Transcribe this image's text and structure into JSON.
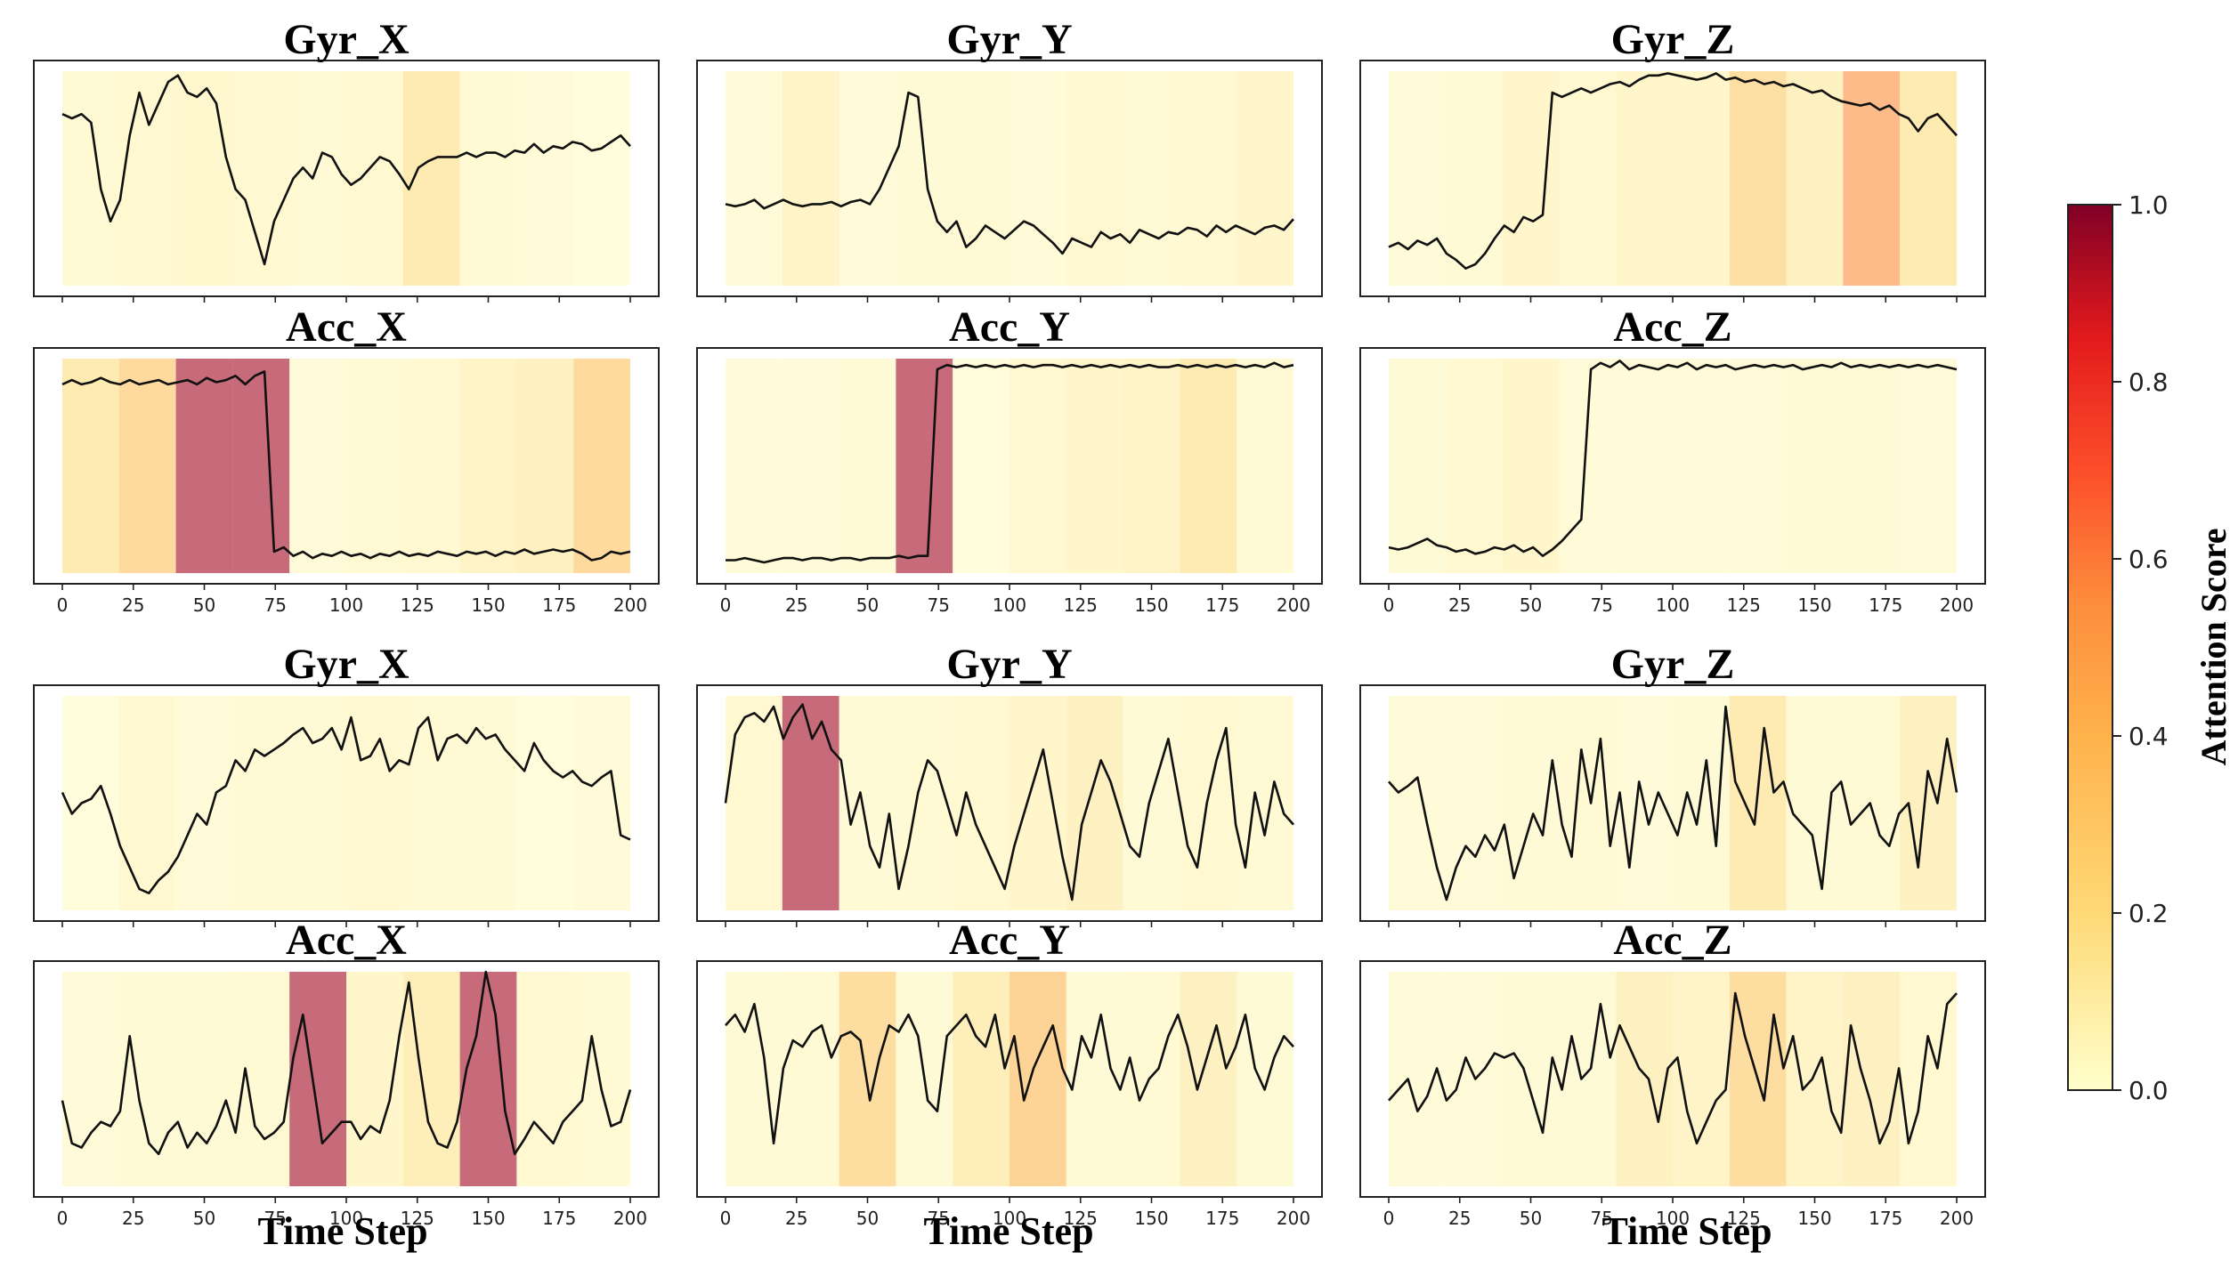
{
  "chart_data": {
    "type": "line",
    "panels": [
      {
        "title": "Gyr_X",
        "attention": [
          0.05,
          0.06,
          0.07,
          0.06,
          0.05,
          0.06,
          0.18,
          0.05,
          0.03,
          0.02
        ],
        "values": [
          0.8,
          0.78,
          0.8,
          0.76,
          0.45,
          0.3,
          0.4,
          0.7,
          0.9,
          0.75,
          0.85,
          0.95,
          0.98,
          0.9,
          0.88,
          0.92,
          0.85,
          0.6,
          0.45,
          0.4,
          0.25,
          0.1,
          0.3,
          0.4,
          0.5,
          0.55,
          0.5,
          0.62,
          0.6,
          0.52,
          0.47,
          0.5,
          0.55,
          0.6,
          0.58,
          0.52,
          0.45,
          0.55,
          0.58,
          0.6,
          0.6,
          0.6,
          0.62,
          0.6,
          0.62,
          0.62,
          0.6,
          0.63,
          0.62,
          0.66,
          0.62,
          0.65,
          0.64,
          0.67,
          0.66,
          0.63,
          0.64,
          0.67,
          0.7,
          0.65
        ]
      },
      {
        "title": "Gyr_Y",
        "attention": [
          0.03,
          0.1,
          0.03,
          0.04,
          0.05,
          0.03,
          0.06,
          0.05,
          0.06,
          0.08
        ],
        "values": [
          0.38,
          0.37,
          0.38,
          0.4,
          0.36,
          0.38,
          0.4,
          0.38,
          0.37,
          0.38,
          0.38,
          0.39,
          0.37,
          0.39,
          0.4,
          0.38,
          0.45,
          0.55,
          0.65,
          0.9,
          0.88,
          0.45,
          0.3,
          0.25,
          0.3,
          0.18,
          0.22,
          0.28,
          0.25,
          0.22,
          0.26,
          0.3,
          0.28,
          0.24,
          0.2,
          0.15,
          0.22,
          0.2,
          0.18,
          0.25,
          0.22,
          0.24,
          0.2,
          0.26,
          0.24,
          0.22,
          0.25,
          0.24,
          0.27,
          0.26,
          0.23,
          0.28,
          0.25,
          0.28,
          0.26,
          0.24,
          0.27,
          0.28,
          0.26,
          0.31
        ]
      },
      {
        "title": "Gyr_Z",
        "attention": [
          0.03,
          0.04,
          0.08,
          0.06,
          0.08,
          0.08,
          0.28,
          0.12,
          0.55,
          0.18
        ],
        "values": [
          0.18,
          0.2,
          0.17,
          0.21,
          0.19,
          0.22,
          0.15,
          0.12,
          0.08,
          0.1,
          0.15,
          0.22,
          0.28,
          0.25,
          0.32,
          0.3,
          0.33,
          0.9,
          0.88,
          0.9,
          0.92,
          0.9,
          0.92,
          0.94,
          0.95,
          0.93,
          0.96,
          0.98,
          0.98,
          0.99,
          0.98,
          0.97,
          0.96,
          0.97,
          0.99,
          0.96,
          0.97,
          0.95,
          0.96,
          0.94,
          0.95,
          0.93,
          0.94,
          0.92,
          0.9,
          0.91,
          0.88,
          0.86,
          0.85,
          0.84,
          0.85,
          0.82,
          0.84,
          0.8,
          0.78,
          0.72,
          0.78,
          0.8,
          0.75,
          0.7
        ]
      },
      {
        "title": "Acc_X",
        "attention": [
          0.18,
          0.32,
          0.95,
          0.95,
          0.03,
          0.05,
          0.06,
          0.1,
          0.12,
          0.32
        ],
        "values": [
          0.88,
          0.9,
          0.88,
          0.89,
          0.91,
          0.89,
          0.88,
          0.9,
          0.88,
          0.89,
          0.9,
          0.88,
          0.89,
          0.9,
          0.88,
          0.91,
          0.89,
          0.9,
          0.92,
          0.88,
          0.92,
          0.94,
          0.1,
          0.12,
          0.08,
          0.1,
          0.07,
          0.09,
          0.08,
          0.1,
          0.08,
          0.09,
          0.07,
          0.09,
          0.08,
          0.1,
          0.08,
          0.09,
          0.08,
          0.1,
          0.09,
          0.08,
          0.1,
          0.09,
          0.1,
          0.08,
          0.1,
          0.09,
          0.11,
          0.09,
          0.1,
          0.11,
          0.1,
          0.11,
          0.09,
          0.06,
          0.07,
          0.1,
          0.09,
          0.1
        ]
      },
      {
        "title": "Acc_Y",
        "attention": [
          0.03,
          0.03,
          0.04,
          0.95,
          0.02,
          0.06,
          0.08,
          0.1,
          0.18,
          0.05
        ],
        "values": [
          0.06,
          0.06,
          0.07,
          0.06,
          0.05,
          0.06,
          0.07,
          0.07,
          0.06,
          0.07,
          0.07,
          0.06,
          0.07,
          0.07,
          0.06,
          0.07,
          0.07,
          0.07,
          0.08,
          0.07,
          0.08,
          0.08,
          0.95,
          0.97,
          0.96,
          0.97,
          0.96,
          0.97,
          0.96,
          0.97,
          0.96,
          0.97,
          0.96,
          0.97,
          0.97,
          0.96,
          0.97,
          0.96,
          0.97,
          0.96,
          0.97,
          0.96,
          0.97,
          0.96,
          0.97,
          0.96,
          0.96,
          0.97,
          0.96,
          0.97,
          0.96,
          0.97,
          0.96,
          0.97,
          0.96,
          0.97,
          0.96,
          0.98,
          0.96,
          0.97
        ]
      },
      {
        "title": "Acc_Z",
        "attention": [
          0.04,
          0.06,
          0.08,
          0.03,
          0.03,
          0.03,
          0.03,
          0.04,
          0.04,
          0.03
        ],
        "values": [
          0.12,
          0.11,
          0.12,
          0.14,
          0.16,
          0.13,
          0.12,
          0.1,
          0.11,
          0.09,
          0.1,
          0.12,
          0.11,
          0.13,
          0.1,
          0.12,
          0.08,
          0.11,
          0.15,
          0.2,
          0.25,
          0.95,
          0.98,
          0.96,
          0.99,
          0.95,
          0.97,
          0.96,
          0.95,
          0.97,
          0.96,
          0.98,
          0.95,
          0.97,
          0.96,
          0.97,
          0.95,
          0.96,
          0.97,
          0.96,
          0.97,
          0.96,
          0.97,
          0.95,
          0.96,
          0.97,
          0.96,
          0.98,
          0.96,
          0.97,
          0.96,
          0.97,
          0.96,
          0.97,
          0.96,
          0.97,
          0.96,
          0.97,
          0.96,
          0.95
        ]
      },
      {
        "title": "Gyr_X",
        "attention": [
          0.02,
          0.06,
          0.03,
          0.05,
          0.04,
          0.06,
          0.05,
          0.04,
          0.02,
          0.03
        ],
        "values": [
          0.55,
          0.45,
          0.5,
          0.52,
          0.58,
          0.45,
          0.3,
          0.2,
          0.1,
          0.08,
          0.14,
          0.18,
          0.25,
          0.35,
          0.45,
          0.4,
          0.55,
          0.58,
          0.7,
          0.65,
          0.75,
          0.72,
          0.75,
          0.78,
          0.82,
          0.85,
          0.78,
          0.8,
          0.85,
          0.75,
          0.9,
          0.7,
          0.72,
          0.8,
          0.65,
          0.7,
          0.68,
          0.85,
          0.9,
          0.7,
          0.8,
          0.82,
          0.78,
          0.85,
          0.8,
          0.82,
          0.75,
          0.7,
          0.65,
          0.78,
          0.7,
          0.65,
          0.62,
          0.65,
          0.6,
          0.58,
          0.62,
          0.65,
          0.35,
          0.33
        ]
      },
      {
        "title": "Gyr_Y",
        "attention": [
          0.06,
          0.95,
          0.04,
          0.05,
          0.06,
          0.08,
          0.12,
          0.04,
          0.06,
          0.05
        ],
        "values": [
          0.5,
          0.82,
          0.9,
          0.92,
          0.88,
          0.95,
          0.8,
          0.9,
          0.96,
          0.8,
          0.88,
          0.75,
          0.7,
          0.4,
          0.55,
          0.3,
          0.2,
          0.45,
          0.1,
          0.3,
          0.55,
          0.7,
          0.65,
          0.5,
          0.35,
          0.55,
          0.4,
          0.3,
          0.2,
          0.1,
          0.3,
          0.45,
          0.6,
          0.75,
          0.5,
          0.25,
          0.05,
          0.4,
          0.55,
          0.7,
          0.6,
          0.45,
          0.3,
          0.25,
          0.5,
          0.65,
          0.8,
          0.55,
          0.3,
          0.2,
          0.5,
          0.7,
          0.85,
          0.4,
          0.2,
          0.55,
          0.35,
          0.6,
          0.45,
          0.4
        ]
      },
      {
        "title": "Gyr_Z",
        "attention": [
          0.03,
          0.03,
          0.04,
          0.05,
          0.03,
          0.04,
          0.18,
          0.04,
          0.05,
          0.12
        ],
        "values": [
          0.6,
          0.55,
          0.58,
          0.62,
          0.4,
          0.2,
          0.05,
          0.2,
          0.3,
          0.25,
          0.35,
          0.28,
          0.4,
          0.15,
          0.3,
          0.45,
          0.35,
          0.7,
          0.4,
          0.25,
          0.75,
          0.5,
          0.8,
          0.3,
          0.55,
          0.2,
          0.6,
          0.4,
          0.55,
          0.45,
          0.35,
          0.55,
          0.4,
          0.7,
          0.3,
          0.95,
          0.6,
          0.5,
          0.4,
          0.85,
          0.55,
          0.6,
          0.45,
          0.4,
          0.35,
          0.1,
          0.55,
          0.6,
          0.4,
          0.45,
          0.5,
          0.35,
          0.3,
          0.45,
          0.5,
          0.2,
          0.65,
          0.5,
          0.8,
          0.55
        ]
      },
      {
        "title": "Acc_X",
        "attention": [
          0.03,
          0.04,
          0.04,
          0.05,
          0.95,
          0.08,
          0.15,
          0.95,
          0.06,
          0.05
        ],
        "values": [
          0.4,
          0.2,
          0.18,
          0.25,
          0.3,
          0.28,
          0.35,
          0.7,
          0.4,
          0.2,
          0.15,
          0.25,
          0.3,
          0.18,
          0.25,
          0.2,
          0.28,
          0.4,
          0.25,
          0.55,
          0.28,
          0.22,
          0.25,
          0.3,
          0.6,
          0.8,
          0.5,
          0.2,
          0.25,
          0.3,
          0.3,
          0.22,
          0.28,
          0.25,
          0.4,
          0.7,
          0.95,
          0.6,
          0.3,
          0.2,
          0.18,
          0.3,
          0.55,
          0.7,
          1.0,
          0.8,
          0.35,
          0.15,
          0.22,
          0.3,
          0.25,
          0.2,
          0.3,
          0.35,
          0.4,
          0.7,
          0.45,
          0.28,
          0.3,
          0.45
        ]
      },
      {
        "title": "Acc_Y",
        "attention": [
          0.04,
          0.05,
          0.3,
          0.04,
          0.15,
          0.38,
          0.04,
          0.05,
          0.12,
          0.04
        ],
        "values": [
          0.75,
          0.8,
          0.72,
          0.85,
          0.6,
          0.2,
          0.55,
          0.68,
          0.65,
          0.72,
          0.75,
          0.6,
          0.7,
          0.72,
          0.68,
          0.4,
          0.6,
          0.75,
          0.72,
          0.8,
          0.7,
          0.4,
          0.35,
          0.7,
          0.75,
          0.8,
          0.7,
          0.65,
          0.8,
          0.55,
          0.7,
          0.4,
          0.55,
          0.65,
          0.75,
          0.55,
          0.45,
          0.7,
          0.6,
          0.8,
          0.55,
          0.45,
          0.6,
          0.4,
          0.5,
          0.55,
          0.7,
          0.8,
          0.65,
          0.45,
          0.6,
          0.75,
          0.55,
          0.65,
          0.8,
          0.55,
          0.45,
          0.6,
          0.7,
          0.65
        ]
      },
      {
        "title": "Acc_Z",
        "attention": [
          0.03,
          0.03,
          0.04,
          0.04,
          0.12,
          0.1,
          0.3,
          0.1,
          0.12,
          0.06
        ],
        "values": [
          0.4,
          0.45,
          0.5,
          0.35,
          0.42,
          0.55,
          0.4,
          0.45,
          0.6,
          0.5,
          0.55,
          0.62,
          0.6,
          0.62,
          0.55,
          0.4,
          0.25,
          0.6,
          0.45,
          0.7,
          0.5,
          0.55,
          0.85,
          0.6,
          0.75,
          0.65,
          0.55,
          0.5,
          0.3,
          0.55,
          0.6,
          0.35,
          0.2,
          0.3,
          0.4,
          0.45,
          0.9,
          0.7,
          0.55,
          0.4,
          0.8,
          0.55,
          0.7,
          0.45,
          0.5,
          0.6,
          0.35,
          0.25,
          0.75,
          0.55,
          0.4,
          0.2,
          0.3,
          0.55,
          0.2,
          0.35,
          0.7,
          0.55,
          0.85,
          0.9
        ]
      }
    ],
    "xticks": [
      "0",
      "25",
      "50",
      "75",
      "100",
      "125",
      "150",
      "175",
      "200"
    ],
    "xlabel": "Time Step",
    "colorbar": {
      "label": "Attention Score",
      "ticks": [
        "0.0",
        "0.2",
        "0.4",
        "0.6",
        "0.8",
        "1.0"
      ]
    },
    "xlim": [
      0,
      200
    ],
    "window_size": 20
  },
  "colors": {
    "line": "#111111",
    "axis": "#222222"
  }
}
